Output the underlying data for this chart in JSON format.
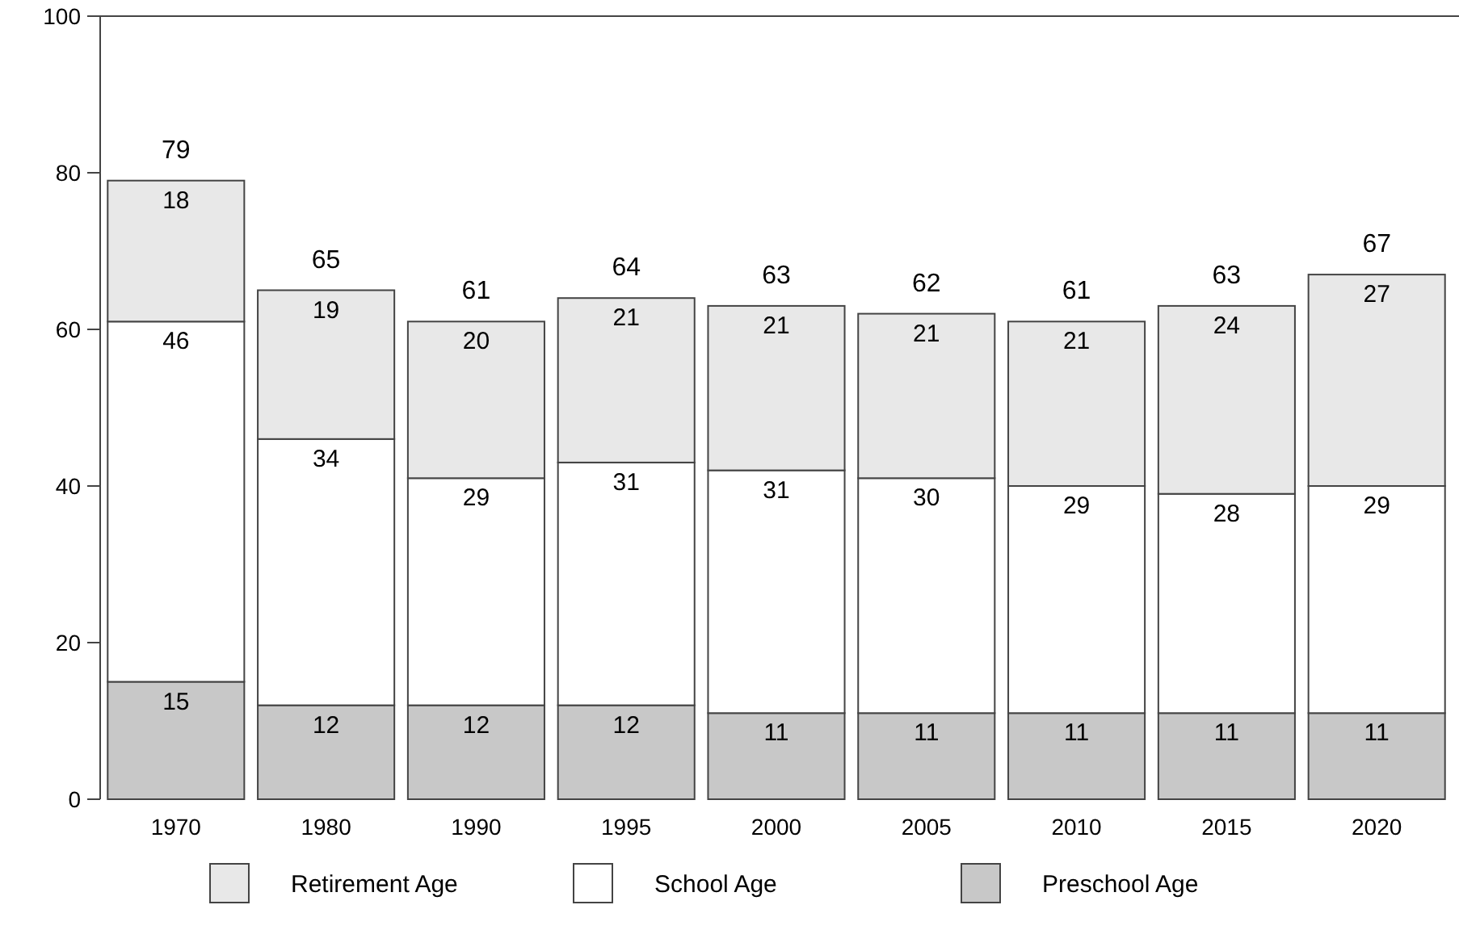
{
  "chart_data": {
    "type": "bar",
    "stacked": true,
    "categories": [
      "1970",
      "1980",
      "1990",
      "1995",
      "2000",
      "2005",
      "2010",
      "2015",
      "2020"
    ],
    "series": [
      {
        "name": "Preschool Age",
        "color": "#c8c8c8",
        "values": [
          15,
          12,
          12,
          12,
          11,
          11,
          11,
          11,
          11
        ]
      },
      {
        "name": "School Age",
        "color": "#ffffff",
        "values": [
          46,
          34,
          29,
          31,
          31,
          30,
          29,
          28,
          29
        ]
      },
      {
        "name": "Retirement Age",
        "color": "#e8e8e8",
        "values": [
          18,
          19,
          20,
          21,
          21,
          21,
          21,
          24,
          27
        ]
      }
    ],
    "totals": [
      "79",
      "65",
      "61",
      "64",
      "63",
      "62",
      "61",
      "63",
      "67"
    ],
    "data_labels": true,
    "ylim": [
      0,
      100
    ],
    "yticks": [
      0,
      20,
      40,
      60,
      80,
      100
    ],
    "grid": false,
    "legend": "bottom"
  }
}
